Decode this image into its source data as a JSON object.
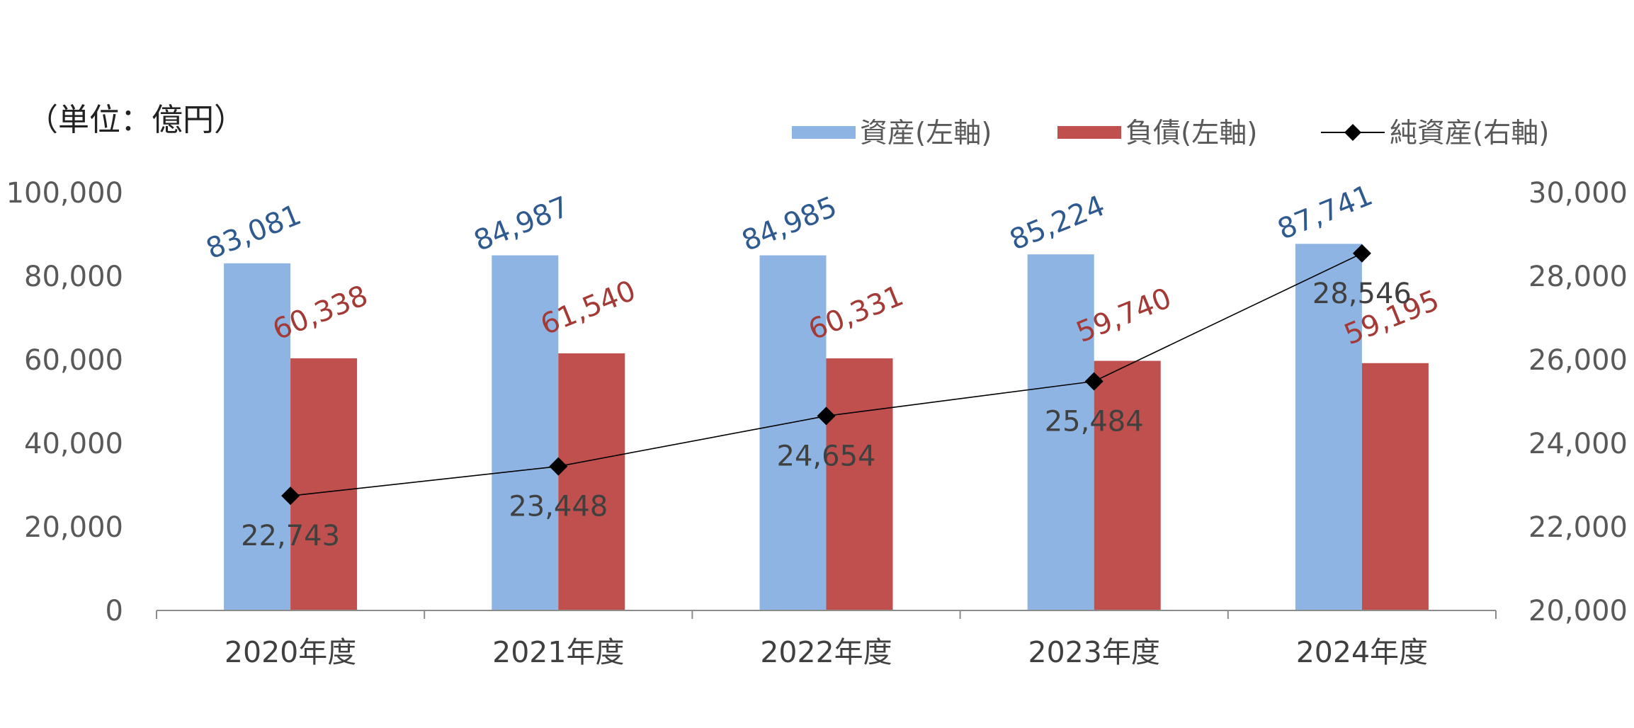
{
  "chart_data": {
    "type": "bar",
    "unit_label": "（単位：億円）",
    "categories": [
      "2020年度",
      "2021年度",
      "2022年度",
      "2023年度",
      "2024年度"
    ],
    "series": [
      {
        "name": "資産(左軸)",
        "kind": "bar",
        "axis": "left",
        "color": "#8db4e3",
        "values": [
          83081,
          84987,
          84985,
          85224,
          87741
        ],
        "labels": [
          "83,081",
          "84,987",
          "84,985",
          "85,224",
          "87,741"
        ],
        "label_color": "#2f5a8f"
      },
      {
        "name": "負債(左軸)",
        "kind": "bar",
        "axis": "left",
        "color": "#c0504d",
        "values": [
          60338,
          61540,
          60331,
          59740,
          59195
        ],
        "labels": [
          "60,338",
          "61,540",
          "60,331",
          "59,740",
          "59,195"
        ],
        "label_color": "#a33a36"
      },
      {
        "name": "純資産(右軸)",
        "kind": "line",
        "axis": "right",
        "color": "#000000",
        "values": [
          22743,
          23448,
          24654,
          25484,
          28546
        ],
        "labels": [
          "22,743",
          "23,448",
          "24,654",
          "25,484",
          "28,546"
        ],
        "label_color": "#404040"
      }
    ],
    "y_left": {
      "min": 0,
      "max": 100000,
      "ticks": [
        "0",
        "20,000",
        "40,000",
        "60,000",
        "80,000",
        "100,000"
      ]
    },
    "y_right": {
      "min": 20000,
      "max": 30000,
      "ticks": [
        "20,000",
        "22,000",
        "24,000",
        "26,000",
        "28,000",
        "30,000"
      ]
    },
    "legend_position": "top-right",
    "grid": false
  }
}
